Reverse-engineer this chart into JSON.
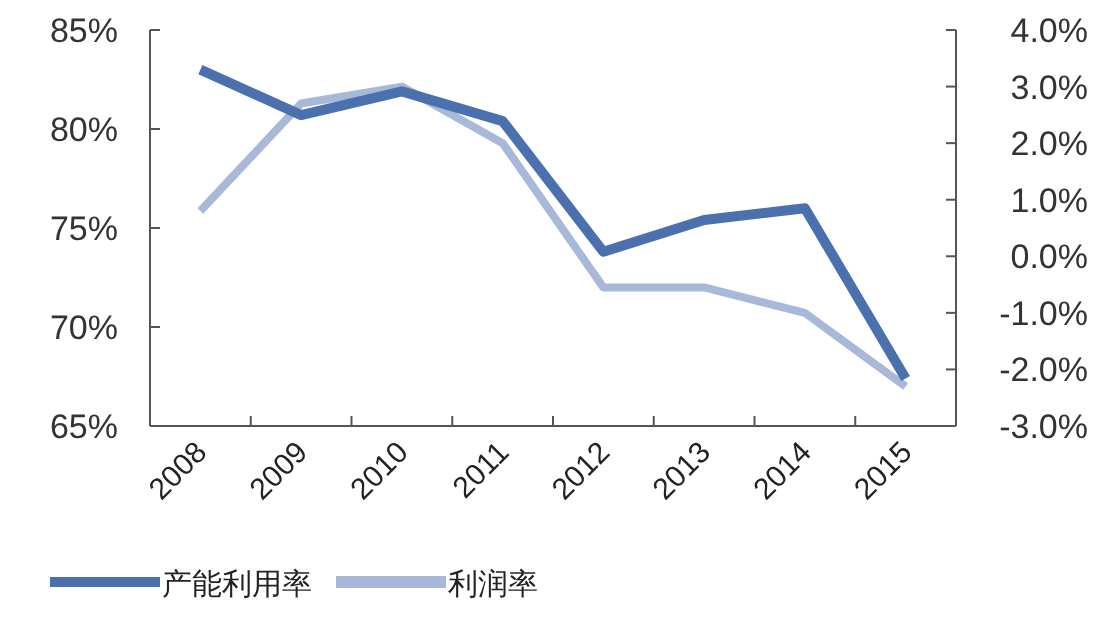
{
  "chart_data": {
    "type": "line",
    "categories": [
      "2008",
      "2009",
      "2010",
      "2011",
      "2012",
      "2013",
      "2014",
      "2015"
    ],
    "series": [
      {
        "name": "产能利用率",
        "color": "#4a70ad",
        "values": [
          83.0,
          80.7,
          81.9,
          80.4,
          73.8,
          75.4,
          76.0,
          67.4
        ]
      },
      {
        "name": "利润率",
        "color": "#a8b8d8",
        "axis": "y2",
        "values": [
          0.8,
          2.7,
          3.0,
          2.0,
          -0.55,
          -0.55,
          -1.0,
          -2.3
        ]
      }
    ],
    "ylim": [
      65,
      85
    ],
    "yticks": [
      {
        "value": 65,
        "label": "65%"
      },
      {
        "value": 70,
        "label": "70%"
      },
      {
        "value": 75,
        "label": "75%"
      },
      {
        "value": 80,
        "label": "80%"
      },
      {
        "value": 85,
        "label": "85%"
      }
    ],
    "y2lim": [
      -3,
      4
    ],
    "y2ticks": [
      {
        "value": -3,
        "label": "-3.0%"
      },
      {
        "value": -2,
        "label": "-2.0%"
      },
      {
        "value": -1,
        "label": "-1.0%"
      },
      {
        "value": 0,
        "label": "0.0%"
      },
      {
        "value": 1,
        "label": "1.0%"
      },
      {
        "value": 2,
        "label": "2.0%"
      },
      {
        "value": 3,
        "label": "3.0%"
      },
      {
        "value": 4,
        "label": "4.0%"
      }
    ],
    "legend": "bottom",
    "grid": false,
    "marker": "none",
    "line_style": "solid"
  }
}
